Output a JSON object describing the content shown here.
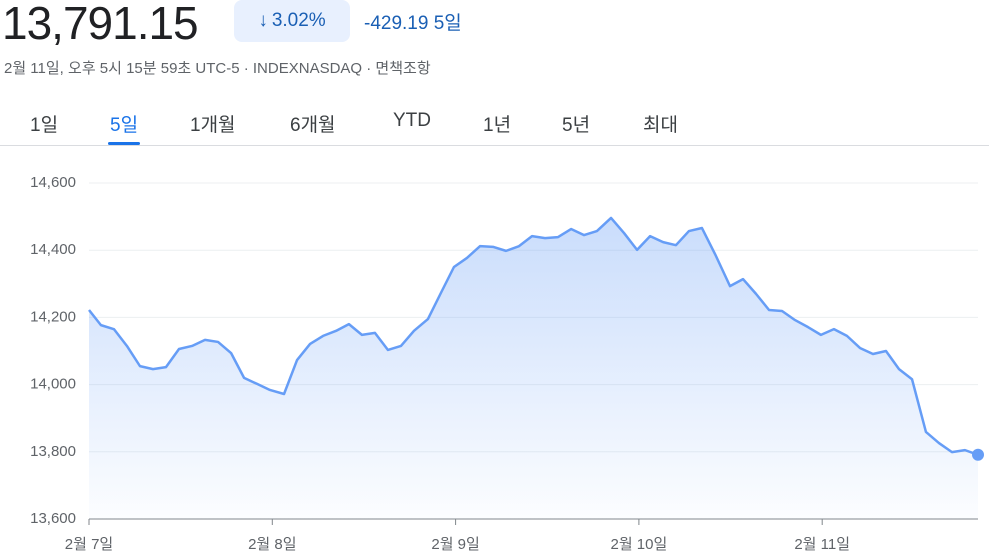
{
  "header": {
    "price": "13,791.15",
    "change_pct": "3.02%",
    "change_abs": "-429.19",
    "change_period": "5일",
    "subtitle": "2월 11일, 오후 5시 15분 59초 UTC-5 · INDEXNASDAQ · 면책조항"
  },
  "tabs": {
    "items": [
      "1일",
      "5일",
      "1개월",
      "6개월",
      "YTD",
      "1년",
      "5년",
      "최대"
    ],
    "selected": 1
  },
  "chart_data": {
    "type": "line",
    "color": "#669df6",
    "grid": true,
    "x": [
      0,
      0.065,
      0.136,
      0.207,
      0.278,
      0.349,
      0.42,
      0.491,
      0.562,
      0.633,
      0.704,
      0.775,
      0.846,
      0.917,
      0.987,
      1.064,
      1.135,
      1.206,
      1.277,
      1.348,
      1.418,
      1.489,
      1.56,
      1.631,
      1.702,
      1.773,
      1.849,
      1.92,
      1.991,
      2.062,
      2.133,
      2.204,
      2.275,
      2.346,
      2.417,
      2.488,
      2.559,
      2.63,
      2.701,
      2.771,
      2.848,
      2.919,
      2.99,
      3.061,
      3.132,
      3.202,
      3.273,
      3.344,
      3.415,
      3.497,
      3.568,
      3.639,
      3.71,
      3.781,
      3.852,
      3.923,
      3.993,
      4.064,
      4.135,
      4.206,
      4.277,
      4.348,
      4.419,
      4.49,
      4.566,
      4.637,
      4.708,
      4.779,
      4.85
    ],
    "values": [
      14222,
      14177,
      14165,
      14115,
      14055,
      14046,
      14052,
      14106,
      14115,
      14133,
      14127,
      14094,
      14020,
      14002,
      13984,
      13972,
      14073,
      14121,
      14145,
      14160,
      14180,
      14148,
      14154,
      14103,
      14115,
      14160,
      14195,
      14273,
      14350,
      14377,
      14412,
      14410,
      14398,
      14412,
      14442,
      14436,
      14439,
      14463,
      14445,
      14457,
      14496,
      14451,
      14401,
      14442,
      14424,
      14415,
      14457,
      14466,
      14389,
      14293,
      14314,
      14270,
      14222,
      14219,
      14192,
      14171,
      14148,
      14165,
      14145,
      14109,
      14091,
      14100,
      14046,
      14016,
      13859,
      13826,
      13799,
      13805,
      13791.15
    ],
    "xlim": [
      0,
      4.85
    ],
    "xticks": [
      {
        "value": 0,
        "label": "2월 7일"
      },
      {
        "value": 1,
        "label": "2월 8일"
      },
      {
        "value": 2,
        "label": "2월 9일"
      },
      {
        "value": 3,
        "label": "2월 10일"
      },
      {
        "value": 4,
        "label": "2월 11일"
      }
    ],
    "ylim": [
      13600,
      14600
    ],
    "yticks": [
      {
        "value": 13600,
        "label": "13,600"
      },
      {
        "value": 13800,
        "label": "13,800"
      },
      {
        "value": 14000,
        "label": "14,000"
      },
      {
        "value": 14200,
        "label": "14,200"
      },
      {
        "value": 14400,
        "label": "14,400"
      },
      {
        "value": 14600,
        "label": "14,600"
      }
    ]
  }
}
